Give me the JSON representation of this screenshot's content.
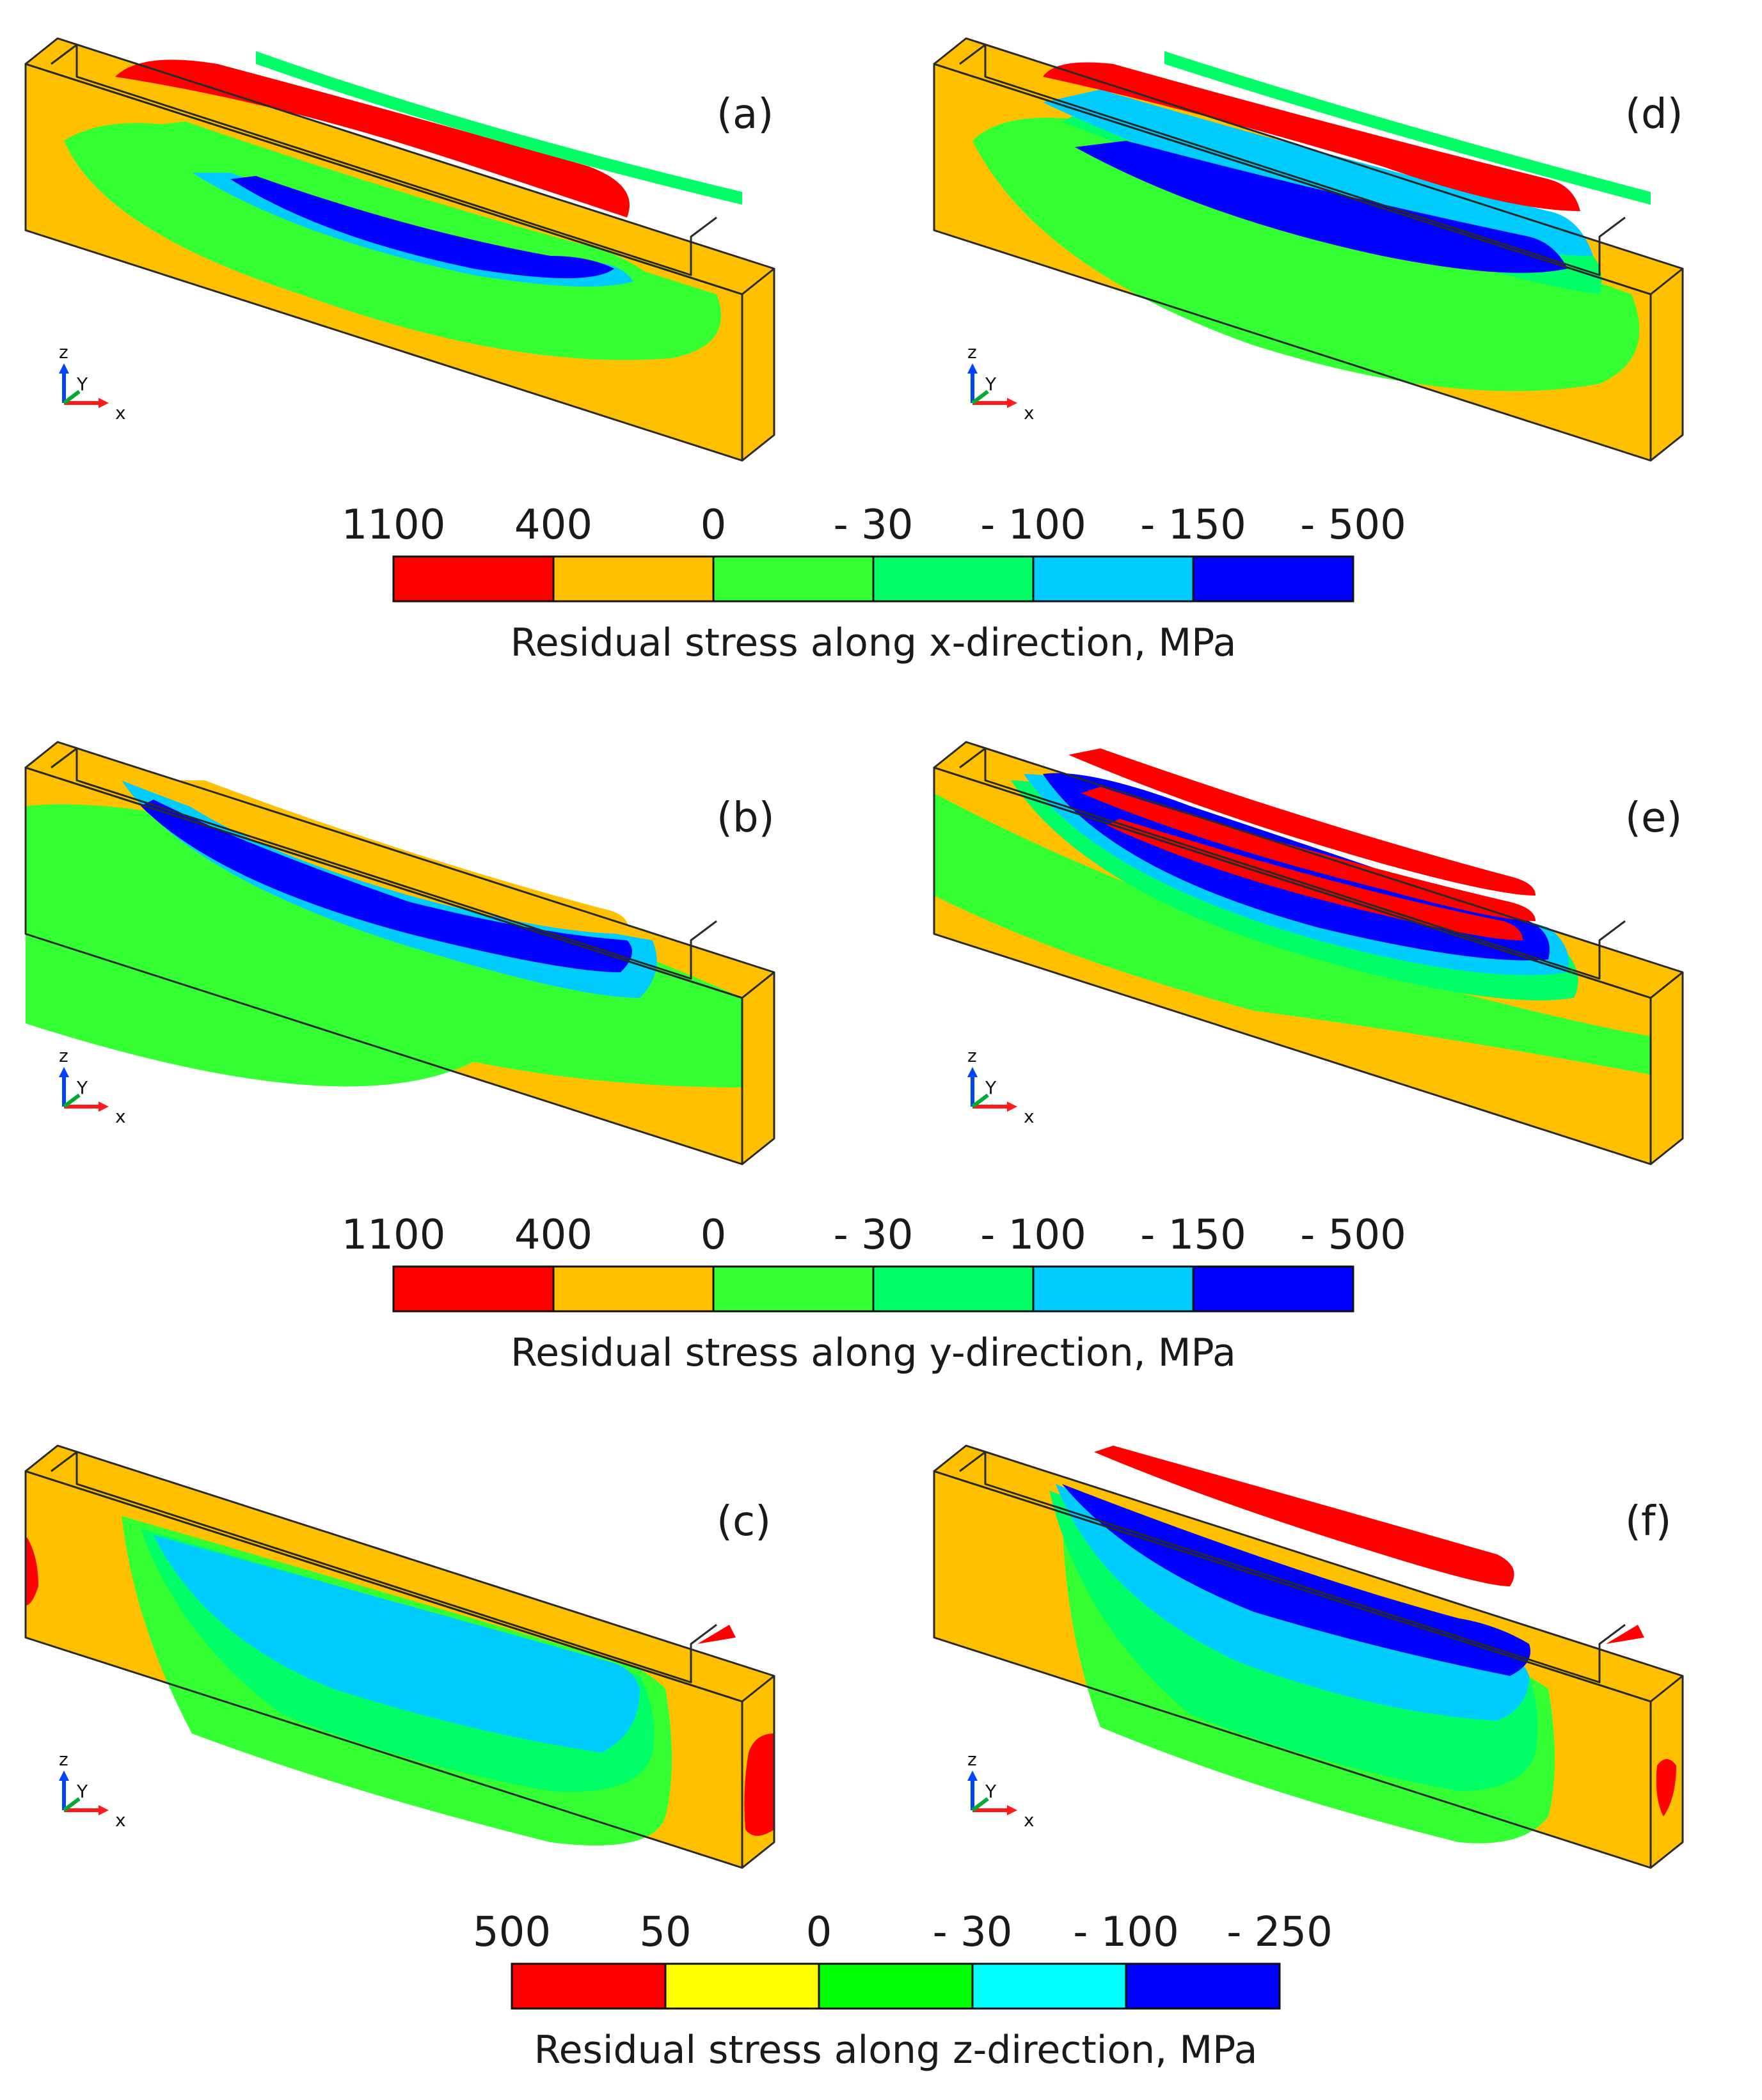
{
  "colors": {
    "red": "#ff0000",
    "orange": "#ffc000",
    "yellow": "#ffff00",
    "lime": "#33ff33",
    "green": "#00ff66",
    "cyan": "#00ccff",
    "cyan_z": "#00ffff",
    "blue": "#0000ff",
    "outline": "#2a2a2a"
  },
  "panels": [
    {
      "id": "a",
      "label": "(a)",
      "component": "x"
    },
    {
      "id": "d",
      "label": "(d)",
      "component": "x"
    },
    {
      "id": "b",
      "label": "(b)",
      "component": "y"
    },
    {
      "id": "e",
      "label": "(e)",
      "component": "y"
    },
    {
      "id": "c",
      "label": "(c)",
      "component": "z"
    },
    {
      "id": "f",
      "label": "(f)",
      "component": "z"
    }
  ],
  "axes_triad": {
    "z": "z",
    "y": "Y",
    "x": "x"
  },
  "colorbars": [
    {
      "id": "x",
      "title": "Residual stress along x-direction, MPa",
      "ticks": [
        "1100",
        "400",
        "0",
        "- 30",
        "- 100",
        "- 150",
        "- 500"
      ],
      "bins": [
        "#ff0000",
        "#ffc000",
        "#33ff33",
        "#00ff66",
        "#00ccff",
        "#0000ff"
      ]
    },
    {
      "id": "y",
      "title": "Residual stress along y-direction, MPa",
      "ticks": [
        "1100",
        "400",
        "0",
        "- 30",
        "- 100",
        "- 150",
        "- 500"
      ],
      "bins": [
        "#ff0000",
        "#ffc000",
        "#33ff33",
        "#00ff66",
        "#00ccff",
        "#0000ff"
      ]
    },
    {
      "id": "z",
      "title": "Residual stress along z-direction, MPa",
      "ticks": [
        "500",
        "50",
        "0",
        "- 30",
        "- 100",
        "- 250"
      ],
      "bins": [
        "#ff0000",
        "#ffff00",
        "#00ff00",
        "#00ffff",
        "#0000ff"
      ]
    }
  ]
}
